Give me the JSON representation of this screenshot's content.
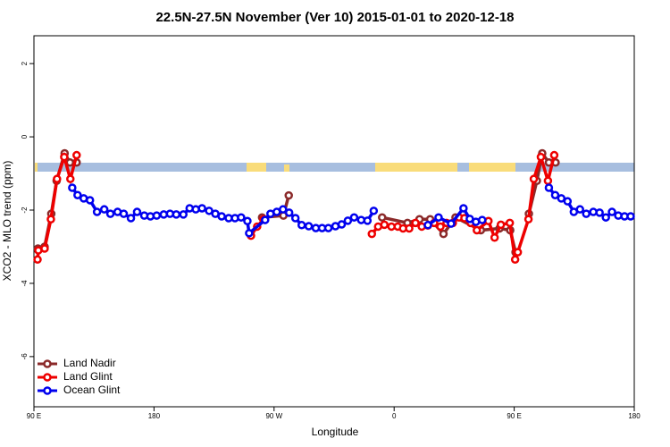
{
  "chart_data": {
    "type": "line",
    "title": "22.5N-27.5N November (Ver 10)   2015-01-01 to 2020-12-18",
    "x_label": "Longitude",
    "y_label": "XCO2 - MLO trend (ppm)",
    "xlim": [
      90,
      540
    ],
    "ylim": [
      -7.37,
      2.76
    ],
    "xticks": [
      {
        "value": 90,
        "label": "90 E"
      },
      {
        "value": 180,
        "label": "180"
      },
      {
        "value": 270,
        "label": "90 W"
      },
      {
        "value": 360,
        "label": "0"
      },
      {
        "value": 450,
        "label": "90 E"
      },
      {
        "value": 540,
        "label": "180"
      }
    ],
    "yticks": [
      2,
      0,
      -2,
      -4,
      -6
    ],
    "legend": "bottom-left",
    "series": [
      {
        "name": "Land Nadir",
        "color": "#8b2a2a",
        "x": [
          93,
          98,
          103,
          107,
          113,
          117,
          122,
          null,
          261,
          277,
          281,
          null,
          351,
          370,
          379,
          387,
          397,
          406,
          425,
          439,
          447,
          451,
          null,
          461,
          467,
          471,
          476,
          481
        ],
        "values": [
          -3.05,
          -3.0,
          -2.1,
          -1.2,
          -0.45,
          -0.7,
          -0.7,
          null,
          -2.2,
          -2.15,
          -1.6,
          null,
          -2.2,
          -2.35,
          -2.25,
          -2.25,
          -2.65,
          -2.2,
          -2.55,
          -2.5,
          -2.55,
          -3.15,
          null,
          -2.1,
          -1.2,
          -0.45,
          -0.7,
          -0.7
        ]
      },
      {
        "name": "Land Glint",
        "color": "#ee0000",
        "x": [
          92.7,
          93.3,
          98,
          102.7,
          107.3,
          112.7,
          117.3,
          122,
          null,
          252.7,
          257.3,
          262,
          null,
          343.3,
          348,
          352.7,
          358,
          362.7,
          366.7,
          371.3,
          376,
          380.7,
          385.3,
          390,
          394.7,
          399.3,
          404,
          408.7,
          412.7,
          417.3,
          422,
          430.7,
          435.3,
          440,
          446.7,
          450.7,
          452.7,
          460.7,
          464.7,
          470,
          475.3,
          480
        ],
        "values": [
          -3.35,
          -3.1,
          -3.05,
          -2.25,
          -1.15,
          -0.55,
          -1.15,
          -0.5,
          null,
          -2.7,
          -2.45,
          -2.25,
          null,
          -2.65,
          -2.45,
          -2.4,
          -2.45,
          -2.45,
          -2.5,
          -2.5,
          -2.35,
          -2.45,
          -2.42,
          -2.35,
          -2.45,
          -2.35,
          -2.35,
          -2.2,
          -2.22,
          -2.35,
          -2.55,
          -2.3,
          -2.75,
          -2.4,
          -2.35,
          -3.35,
          -3.15,
          -2.25,
          -1.15,
          -0.55,
          -1.2,
          -0.5
        ]
      },
      {
        "name": "Ocean Glint",
        "color": "#0000ee",
        "x": [
          118.7,
          122.7,
          127.3,
          132,
          137.3,
          142.7,
          147.3,
          152.7,
          157.3,
          162.7,
          167.3,
          172.7,
          177.3,
          182,
          187.3,
          192,
          196.7,
          202,
          206.7,
          211.3,
          216,
          221.3,
          226,
          230.7,
          236,
          240.7,
          245.3,
          250,
          251.3,
          263.3,
          267.3,
          272,
          276.7,
          281.3,
          286,
          290.7,
          296,
          301.3,
          306,
          310.7,
          316,
          320.7,
          325.3,
          330,
          335.3,
          340,
          344.7,
          null,
          385.3,
          393.3,
          402.7,
          412,
          416.7,
          421.3,
          426,
          null,
          476,
          480.7,
          485.3,
          490,
          494.7,
          499.3,
          504,
          509.3,
          514,
          518.7,
          523.3,
          528,
          532.7,
          537.3
        ],
        "values": [
          -1.39,
          -1.59,
          -1.68,
          -1.73,
          -2.05,
          -1.98,
          -2.1,
          -2.05,
          -2.1,
          -2.22,
          -2.05,
          -2.15,
          -2.17,
          -2.15,
          -2.12,
          -2.1,
          -2.12,
          -2.12,
          -1.95,
          -1.98,
          -1.95,
          -2.02,
          -2.1,
          -2.17,
          -2.22,
          -2.22,
          -2.2,
          -2.3,
          -2.63,
          -2.27,
          -2.1,
          -2.05,
          -1.98,
          -2.07,
          -2.22,
          -2.41,
          -2.44,
          -2.49,
          -2.49,
          -2.49,
          -2.44,
          -2.39,
          -2.29,
          -2.2,
          -2.27,
          -2.29,
          -2.02,
          null,
          -2.41,
          -2.2,
          -2.37,
          -1.95,
          -2.24,
          -2.32,
          -2.27,
          null,
          -1.39,
          -1.59,
          -1.68,
          -1.76,
          -2.05,
          -1.98,
          -2.1,
          -2.05,
          -2.07,
          -2.2,
          -2.05,
          -2.15,
          -2.17,
          -2.17
        ]
      }
    ]
  }
}
